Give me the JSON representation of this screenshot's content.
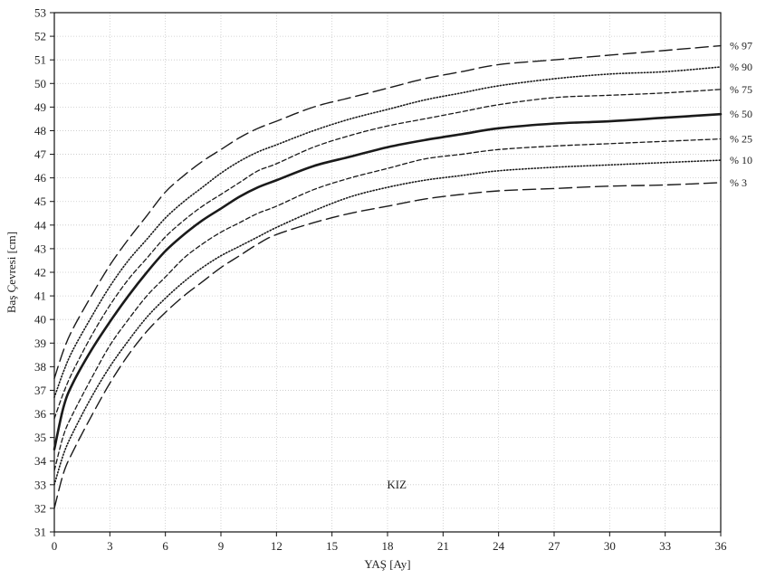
{
  "chart_data": {
    "type": "line",
    "xlabel": "YAŞ [Ay]",
    "ylabel": "Baş Çevresi [cm]",
    "annotation": "KIZ",
    "xlim": [
      0,
      36
    ],
    "ylim": [
      31,
      53
    ],
    "x_ticks": [
      "0",
      "3",
      "6",
      "9",
      "12",
      "15",
      "18",
      "21",
      "24",
      "27",
      "30",
      "33",
      "36"
    ],
    "y_ticks": [
      "31",
      "32",
      "33",
      "34",
      "35",
      "36",
      "37",
      "38",
      "39",
      "40",
      "41",
      "42",
      "43",
      "44",
      "45",
      "46",
      "47",
      "48",
      "49",
      "50",
      "51",
      "52",
      "53"
    ],
    "grid": true,
    "x": [
      0,
      0.5,
      1,
      2,
      3,
      4,
      5,
      6,
      7,
      8,
      9,
      10,
      11,
      12,
      14,
      16,
      18,
      20,
      22,
      24,
      27,
      30,
      33,
      36
    ],
    "series": [
      {
        "name": "% 97",
        "style": "longdash",
        "values": [
          37.5,
          38.7,
          39.6,
          41.0,
          42.3,
          43.4,
          44.4,
          45.4,
          46.1,
          46.7,
          47.2,
          47.7,
          48.1,
          48.4,
          49.0,
          49.4,
          49.8,
          50.2,
          50.5,
          50.8,
          51.0,
          51.2,
          51.4,
          51.6
        ]
      },
      {
        "name": "% 90",
        "style": "dotted",
        "values": [
          36.7,
          37.8,
          38.7,
          40.1,
          41.4,
          42.5,
          43.4,
          44.3,
          45.0,
          45.6,
          46.2,
          46.7,
          47.1,
          47.4,
          48.0,
          48.5,
          48.9,
          49.3,
          49.6,
          49.9,
          50.2,
          50.4,
          50.5,
          50.7
        ]
      },
      {
        "name": "% 75",
        "style": "dashed",
        "values": [
          35.8,
          36.9,
          37.8,
          39.3,
          40.6,
          41.7,
          42.6,
          43.5,
          44.2,
          44.8,
          45.3,
          45.8,
          46.3,
          46.6,
          47.3,
          47.8,
          48.2,
          48.5,
          48.8,
          49.1,
          49.4,
          49.5,
          49.6,
          49.75
        ]
      },
      {
        "name": "% 50",
        "style": "solid",
        "values": [
          34.5,
          36.3,
          37.3,
          38.7,
          39.9,
          41.0,
          42.0,
          42.9,
          43.6,
          44.2,
          44.7,
          45.2,
          45.6,
          45.9,
          46.5,
          46.9,
          47.3,
          47.6,
          47.85,
          48.1,
          48.3,
          48.4,
          48.55,
          48.7
        ]
      },
      {
        "name": "% 25",
        "style": "dashed",
        "values": [
          33.6,
          35.1,
          36.0,
          37.5,
          38.9,
          40.0,
          41.0,
          41.8,
          42.6,
          43.2,
          43.7,
          44.1,
          44.5,
          44.8,
          45.5,
          46.0,
          46.4,
          46.8,
          47.0,
          47.2,
          47.35,
          47.45,
          47.55,
          47.65
        ]
      },
      {
        "name": "% 10",
        "style": "dotted",
        "values": [
          33.0,
          34.3,
          35.2,
          36.7,
          38.0,
          39.1,
          40.1,
          40.9,
          41.6,
          42.2,
          42.7,
          43.1,
          43.5,
          43.9,
          44.6,
          45.2,
          45.6,
          45.9,
          46.1,
          46.3,
          46.45,
          46.55,
          46.65,
          46.75
        ]
      },
      {
        "name": "% 3",
        "style": "longdash",
        "values": [
          32.0,
          33.5,
          34.4,
          35.9,
          37.3,
          38.5,
          39.5,
          40.3,
          41.0,
          41.6,
          42.2,
          42.7,
          43.2,
          43.6,
          44.1,
          44.5,
          44.8,
          45.1,
          45.3,
          45.45,
          45.55,
          45.65,
          45.7,
          45.8
        ]
      }
    ]
  }
}
